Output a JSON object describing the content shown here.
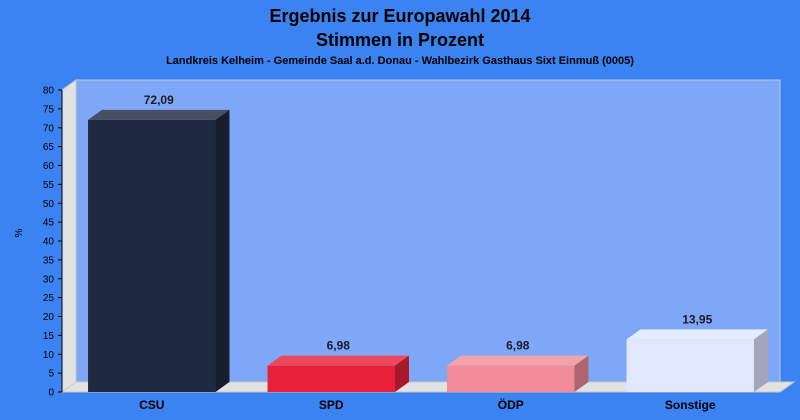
{
  "chart_data": {
    "type": "bar",
    "title": "Ergebnis zur Europawahl 2014",
    "title2": "Stimmen in Prozent",
    "subtitle": "Landkreis Kelheim - Gemeinde Saal a.d. Donau - Wahlbezirk Gasthaus Sixt Einmuß (0005)",
    "ylabel": "%",
    "xlabel": "",
    "ylim": [
      0,
      80
    ],
    "yticks": [
      0,
      5,
      10,
      15,
      20,
      25,
      30,
      35,
      40,
      45,
      50,
      55,
      60,
      65,
      70,
      75,
      80
    ],
    "grid": false,
    "categories": [
      "CSU",
      "SPD",
      "ÖDP",
      "Sonstige"
    ],
    "values": [
      72.09,
      6.98,
      6.98,
      13.95
    ],
    "value_labels": [
      "72,09",
      "6,98",
      "6,98",
      "13,95"
    ],
    "colors": [
      "#1f2a40",
      "#e8213a",
      "#f08d98",
      "#e0e8ff"
    ]
  }
}
